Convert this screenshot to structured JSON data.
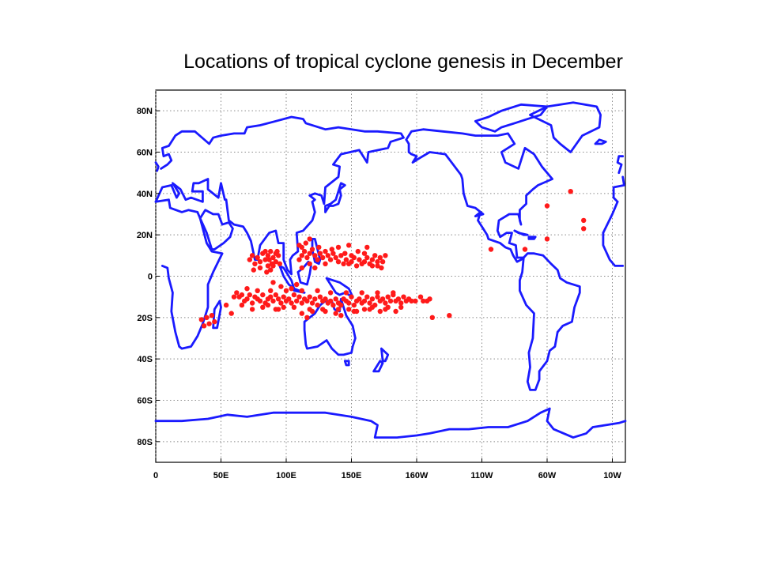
{
  "title": "Locations of tropical cyclone genesis in December",
  "map": {
    "projection": "equirectangular",
    "lon_range": [
      0,
      360
    ],
    "lat_range": [
      -90,
      90
    ],
    "grid": "dotted",
    "coast_color": "#1a1aff",
    "genesis_color": "#ff1a1a",
    "y_ticks": [
      {
        "lat": 80,
        "label": "80N"
      },
      {
        "lat": 60,
        "label": "60N"
      },
      {
        "lat": 40,
        "label": "40N"
      },
      {
        "lat": 20,
        "label": "20N"
      },
      {
        "lat": 0,
        "label": "0"
      },
      {
        "lat": -20,
        "label": "20S"
      },
      {
        "lat": -40,
        "label": "40S"
      },
      {
        "lat": -60,
        "label": "60S"
      },
      {
        "lat": -80,
        "label": "80S"
      }
    ],
    "x_ticks": [
      {
        "lon": 0,
        "label": "0"
      },
      {
        "lon": 50,
        "label": "50E"
      },
      {
        "lon": 100,
        "label": "100E"
      },
      {
        "lon": 150,
        "label": "150E"
      },
      {
        "lon": 200,
        "label": "160W"
      },
      {
        "lon": 250,
        "label": "110W"
      },
      {
        "lon": 300,
        "label": "60W"
      },
      {
        "lon": 350,
        "label": "10W"
      }
    ]
  },
  "genesis_points": [
    [
      72,
      8
    ],
    [
      74,
      10
    ],
    [
      76,
      6
    ],
    [
      78,
      9
    ],
    [
      80,
      7
    ],
    [
      82,
      11
    ],
    [
      84,
      8
    ],
    [
      86,
      10
    ],
    [
      88,
      12
    ],
    [
      89,
      6
    ],
    [
      90,
      9
    ],
    [
      92,
      11
    ],
    [
      86,
      5
    ],
    [
      88,
      3
    ],
    [
      92,
      7
    ],
    [
      94,
      10
    ],
    [
      80,
      4
    ],
    [
      84,
      12
    ],
    [
      87,
      8
    ],
    [
      90,
      5
    ],
    [
      93,
      12
    ],
    [
      85,
      2
    ],
    [
      75,
      3
    ],
    [
      95,
      6
    ],
    [
      110,
      8
    ],
    [
      112,
      10
    ],
    [
      114,
      12
    ],
    [
      116,
      9
    ],
    [
      118,
      11
    ],
    [
      120,
      13
    ],
    [
      122,
      10
    ],
    [
      124,
      8
    ],
    [
      126,
      11
    ],
    [
      128,
      9
    ],
    [
      130,
      12
    ],
    [
      132,
      10
    ],
    [
      134,
      8
    ],
    [
      136,
      11
    ],
    [
      138,
      9
    ],
    [
      140,
      7
    ],
    [
      142,
      10
    ],
    [
      144,
      6
    ],
    [
      146,
      8
    ],
    [
      148,
      6
    ],
    [
      150,
      7
    ],
    [
      152,
      9
    ],
    [
      154,
      5
    ],
    [
      156,
      8
    ],
    [
      158,
      6
    ],
    [
      160,
      7
    ],
    [
      162,
      9
    ],
    [
      164,
      6
    ],
    [
      166,
      8
    ],
    [
      168,
      10
    ],
    [
      170,
      7
    ],
    [
      172,
      9
    ],
    [
      174,
      7
    ],
    [
      176,
      10
    ],
    [
      112,
      14
    ],
    [
      118,
      6
    ],
    [
      122,
      4
    ],
    [
      125,
      14
    ],
    [
      130,
      6
    ],
    [
      135,
      13
    ],
    [
      140,
      14
    ],
    [
      145,
      11
    ],
    [
      150,
      10
    ],
    [
      155,
      12
    ],
    [
      160,
      11
    ],
    [
      166,
      5
    ],
    [
      170,
      5
    ],
    [
      173,
      4
    ],
    [
      115,
      16
    ],
    [
      148,
      15
    ],
    [
      162,
      14
    ],
    [
      110,
      15
    ],
    [
      112,
      4
    ],
    [
      118,
      18
    ],
    [
      62,
      -8
    ],
    [
      64,
      -10
    ],
    [
      66,
      -9
    ],
    [
      68,
      -12
    ],
    [
      70,
      -11
    ],
    [
      72,
      -9
    ],
    [
      74,
      -13
    ],
    [
      76,
      -10
    ],
    [
      78,
      -11
    ],
    [
      80,
      -12
    ],
    [
      82,
      -9
    ],
    [
      84,
      -13
    ],
    [
      86,
      -11
    ],
    [
      88,
      -10
    ],
    [
      90,
      -12
    ],
    [
      92,
      -9
    ],
    [
      94,
      -11
    ],
    [
      96,
      -13
    ],
    [
      98,
      -10
    ],
    [
      100,
      -12
    ],
    [
      102,
      -11
    ],
    [
      104,
      -13
    ],
    [
      106,
      -9
    ],
    [
      108,
      -12
    ],
    [
      110,
      -10
    ],
    [
      112,
      -13
    ],
    [
      114,
      -11
    ],
    [
      116,
      -12
    ],
    [
      118,
      -10
    ],
    [
      120,
      -13
    ],
    [
      122,
      -11
    ],
    [
      124,
      -14
    ],
    [
      126,
      -10
    ],
    [
      128,
      -12
    ],
    [
      130,
      -11
    ],
    [
      132,
      -13
    ],
    [
      134,
      -12
    ],
    [
      136,
      -14
    ],
    [
      138,
      -11
    ],
    [
      140,
      -13
    ],
    [
      142,
      -14
    ],
    [
      144,
      -11
    ],
    [
      146,
      -12
    ],
    [
      148,
      -13
    ],
    [
      150,
      -10
    ],
    [
      152,
      -14
    ],
    [
      154,
      -12
    ],
    [
      156,
      -11
    ],
    [
      158,
      -13
    ],
    [
      160,
      -12
    ],
    [
      162,
      -10
    ],
    [
      164,
      -13
    ],
    [
      166,
      -11
    ],
    [
      168,
      -14
    ],
    [
      170,
      -10
    ],
    [
      172,
      -12
    ],
    [
      174,
      -11
    ],
    [
      176,
      -13
    ],
    [
      178,
      -10
    ],
    [
      180,
      -12
    ],
    [
      182,
      -9
    ],
    [
      184,
      -12
    ],
    [
      186,
      -11
    ],
    [
      188,
      -13
    ],
    [
      190,
      -10
    ],
    [
      192,
      -12
    ],
    [
      194,
      -11
    ],
    [
      196,
      -12
    ],
    [
      199,
      -12
    ],
    [
      203,
      -10
    ],
    [
      205,
      -12
    ],
    [
      208,
      -12
    ],
    [
      210,
      -11
    ],
    [
      66,
      -14
    ],
    [
      70,
      -6
    ],
    [
      74,
      -16
    ],
    [
      78,
      -7
    ],
    [
      82,
      -15
    ],
    [
      88,
      -7
    ],
    [
      94,
      -16
    ],
    [
      100,
      -7
    ],
    [
      106,
      -15
    ],
    [
      112,
      -7
    ],
    [
      118,
      -16
    ],
    [
      124,
      -7
    ],
    [
      128,
      -16
    ],
    [
      134,
      -8
    ],
    [
      140,
      -16
    ],
    [
      146,
      -8
    ],
    [
      152,
      -17
    ],
    [
      158,
      -8
    ],
    [
      164,
      -16
    ],
    [
      170,
      -8
    ],
    [
      176,
      -16
    ],
    [
      182,
      -8
    ],
    [
      188,
      -15
    ],
    [
      90,
      -3
    ],
    [
      96,
      -5
    ],
    [
      104,
      -6
    ],
    [
      108,
      -4
    ],
    [
      86,
      -14
    ],
    [
      92,
      -16
    ],
    [
      98,
      -15
    ],
    [
      112,
      -18
    ],
    [
      116,
      -20
    ],
    [
      120,
      -17
    ],
    [
      130,
      -17
    ],
    [
      138,
      -18
    ],
    [
      142,
      -19
    ],
    [
      148,
      -16
    ],
    [
      154,
      -17
    ],
    [
      160,
      -16
    ],
    [
      166,
      -15
    ],
    [
      172,
      -17
    ],
    [
      178,
      -15
    ],
    [
      184,
      -17
    ],
    [
      54,
      -14
    ],
    [
      58,
      -18
    ],
    [
      60,
      -10
    ],
    [
      35,
      -21
    ],
    [
      37,
      -24
    ],
    [
      39,
      -20
    ],
    [
      41,
      -23
    ],
    [
      43,
      -19
    ],
    [
      45,
      -22
    ],
    [
      212,
      -20
    ],
    [
      225,
      -19
    ],
    [
      257,
      13
    ],
    [
      283,
      13
    ],
    [
      300,
      18
    ],
    [
      300,
      34
    ],
    [
      318,
      41
    ],
    [
      328,
      27
    ],
    [
      328,
      23
    ]
  ]
}
